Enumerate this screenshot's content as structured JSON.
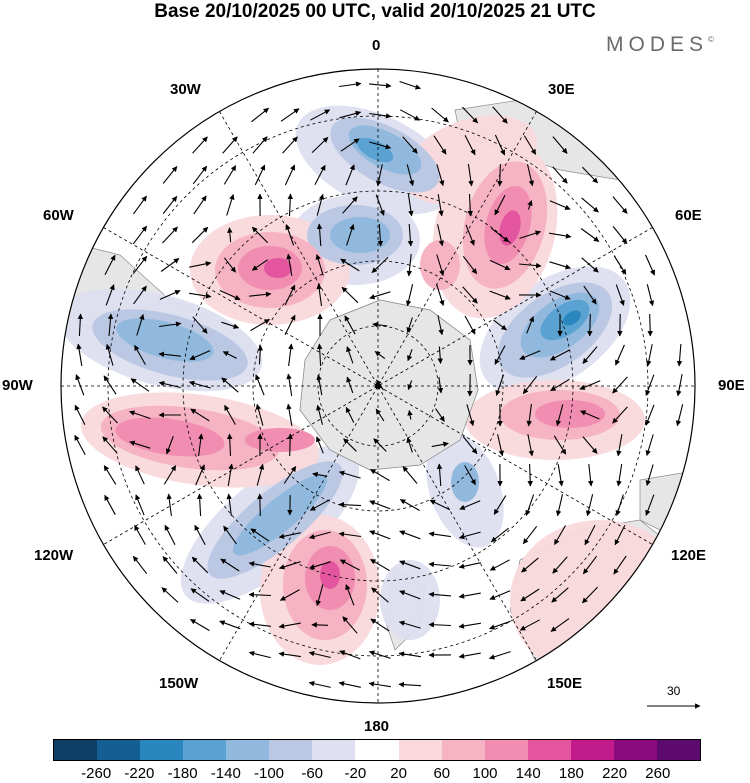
{
  "title": "Base 20/10/2025 00 UTC, valid 20/10/2025 21 UTC",
  "brand": "MODES",
  "brand_mark": "©",
  "longitude_labels": {
    "n0": "0",
    "e30": "30E",
    "e60": "60E",
    "e90": "90E",
    "e120": "120E",
    "e150": "150E",
    "s180": "180",
    "w150": "150W",
    "w120": "120W",
    "w90": "90W",
    "w60": "60W",
    "w30": "30W"
  },
  "vector_reference": "30",
  "colorbar": {
    "ticks": [
      "-260",
      "-220",
      "-180",
      "-140",
      "-100",
      "-60",
      "-20",
      "20",
      "60",
      "100",
      "140",
      "180",
      "220",
      "260"
    ],
    "colors": [
      "#0c3e66",
      "#135e92",
      "#2a86bf",
      "#5aa2d2",
      "#91b9dd",
      "#bac8e4",
      "#dedff0",
      "#ffffff",
      "#f9d9dc",
      "#f6b3c3",
      "#f08db1",
      "#e4559f",
      "#c11a8a",
      "#8b0a7d",
      "#5c0a6e"
    ]
  }
}
